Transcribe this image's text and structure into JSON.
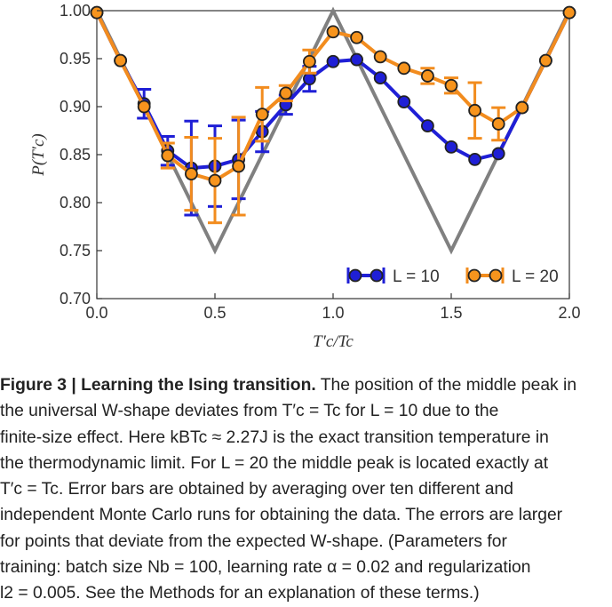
{
  "chart_data": {
    "type": "line",
    "xlabel": "T′c/Tc",
    "ylabel": "P(T′c)",
    "xlim": [
      0.0,
      2.0
    ],
    "ylim": [
      0.7,
      1.0
    ],
    "x_ticks": [
      "0.0",
      "0.5",
      "1.0",
      "1.5",
      "2.0"
    ],
    "x_tick_values": [
      0.0,
      0.5,
      1.0,
      1.5,
      2.0
    ],
    "y_ticks": [
      "0.70",
      "0.75",
      "0.80",
      "0.85",
      "0.90",
      "0.95",
      "1.00"
    ],
    "y_tick_values": [
      0.7,
      0.75,
      0.8,
      0.85,
      0.9,
      0.95,
      1.0
    ],
    "legend_position": "bottom-right",
    "colors": {
      "ideal": "#808080",
      "L10_line": "#1f1fd6",
      "L10_marker": "#1f1fd6",
      "L20_line": "#f28c1e",
      "L20_marker": "#f7941d",
      "marker_edge": "#222222"
    },
    "reference": {
      "name": "ideal W-shape",
      "x": [
        0.0,
        0.5,
        1.0,
        1.5,
        2.0
      ],
      "y": [
        1.0,
        0.75,
        1.0,
        0.75,
        1.0
      ]
    },
    "series": [
      {
        "name": "L = 10",
        "legend_label": "L = 10",
        "x": [
          0.0,
          0.1,
          0.2,
          0.3,
          0.4,
          0.5,
          0.6,
          0.7,
          0.8,
          0.9,
          1.0,
          1.1,
          1.2,
          1.3,
          1.4,
          1.5,
          1.6,
          1.7,
          1.8,
          1.9,
          2.0
        ],
        "y": [
          0.998,
          0.948,
          0.903,
          0.854,
          0.836,
          0.838,
          0.845,
          0.874,
          0.902,
          0.929,
          0.947,
          0.949,
          0.93,
          0.905,
          0.88,
          0.858,
          0.845,
          0.851,
          0.899,
          0.948,
          0.998
        ],
        "err": [
          0,
          0,
          0.015,
          0.015,
          0.049,
          0.042,
          0.041,
          0.021,
          0.01,
          0.013,
          0,
          0,
          0,
          0,
          0,
          0,
          0,
          0,
          0,
          0,
          0
        ]
      },
      {
        "name": "L = 20",
        "legend_label": "L = 20",
        "x": [
          0.0,
          0.1,
          0.2,
          0.3,
          0.4,
          0.5,
          0.6,
          0.7,
          0.8,
          0.9,
          1.0,
          1.1,
          1.2,
          1.3,
          1.4,
          1.5,
          1.6,
          1.7,
          1.8,
          1.9,
          2.0
        ],
        "y": [
          0.998,
          0.948,
          0.9,
          0.849,
          0.83,
          0.823,
          0.838,
          0.892,
          0.914,
          0.947,
          0.978,
          0.972,
          0.952,
          0.94,
          0.932,
          0.922,
          0.896,
          0.882,
          0.899,
          0.948,
          0.998
        ],
        "err": [
          0,
          0,
          0,
          0.013,
          0.038,
          0.044,
          0.051,
          0.028,
          0.008,
          0.012,
          0,
          0,
          0,
          0,
          0.008,
          0.008,
          0.029,
          0.017,
          0,
          0,
          0
        ]
      }
    ]
  },
  "caption": {
    "title": "Figure 3 | Learning the Ising transition.",
    "line1_rest": " The position of the middle peak in",
    "lines": [
      "the universal W-shape deviates from T′c = Tc for L = 10 due to the",
      "finite-size effect. Here kBTc ≈ 2.27J is the exact transition temperature in",
      "the thermodynamic limit. For L = 20 the middle peak is located exactly at",
      "T′c = Tc. Error bars are obtained by averaging over ten different and",
      "independent Monte Carlo runs for obtaining the data. The errors are larger",
      "for points that deviate from the expected W-shape. (Parameters for",
      "training: batch size Nb = 100, learning rate α = 0.02 and regularization",
      "l2 = 0.005. See the Methods for an explanation of these terms.)"
    ]
  }
}
